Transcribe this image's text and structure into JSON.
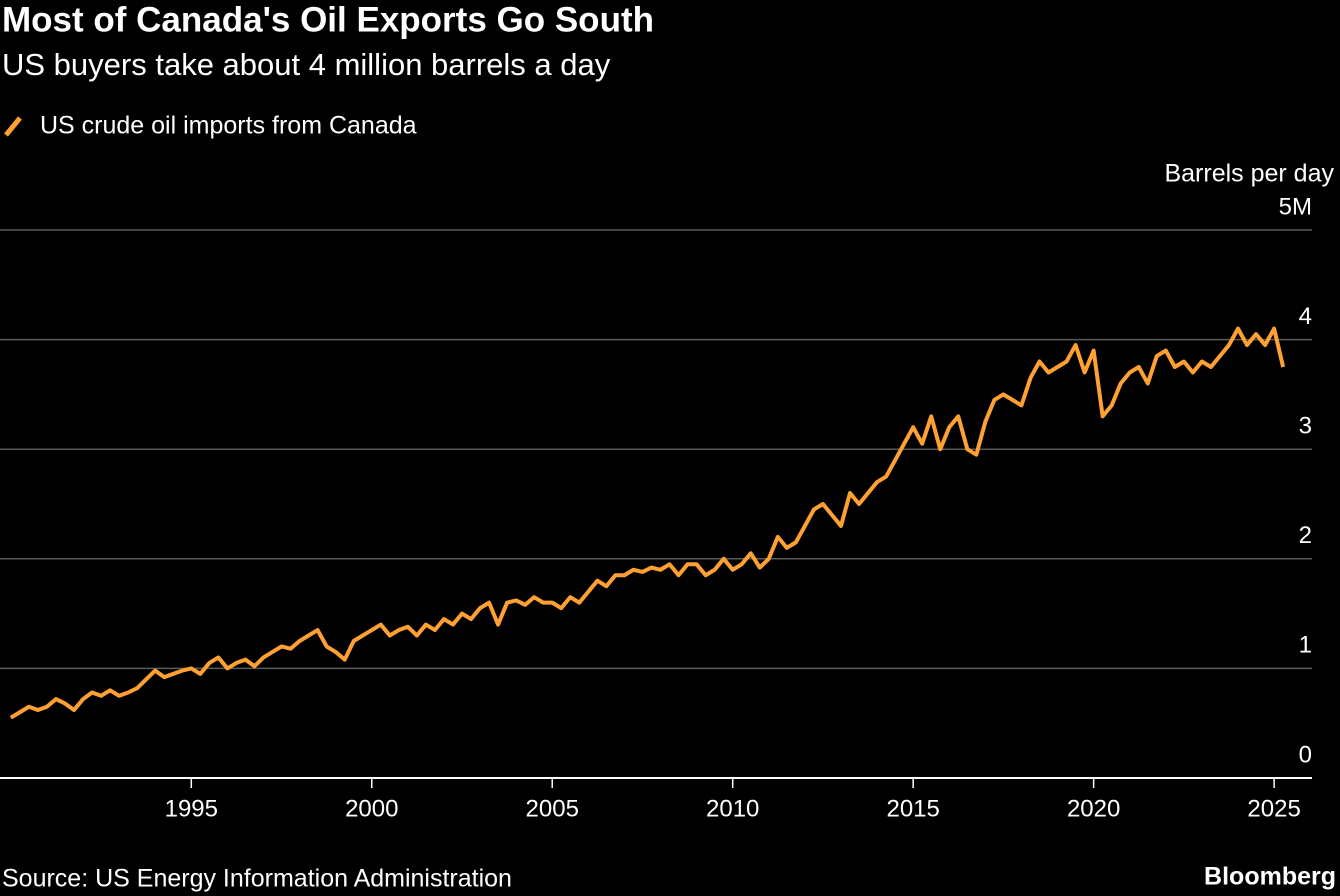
{
  "chart_data": {
    "type": "line",
    "title": "Most of Canada's Oil Exports Go South",
    "subtitle": "US buyers take about 4 million barrels a day",
    "y_axis_label": "Barrels per day",
    "source": "Source: US Energy Information Administration",
    "brand": "Bloomberg",
    "x": [
      1990,
      1990.25,
      1990.5,
      1990.75,
      1991,
      1991.25,
      1991.5,
      1991.75,
      1992,
      1992.25,
      1992.5,
      1992.75,
      1993,
      1993.25,
      1993.5,
      1993.75,
      1994,
      1994.25,
      1994.5,
      1994.75,
      1995,
      1995.25,
      1995.5,
      1995.75,
      1996,
      1996.25,
      1996.5,
      1996.75,
      1997,
      1997.25,
      1997.5,
      1997.75,
      1998,
      1998.25,
      1998.5,
      1998.75,
      1999,
      1999.25,
      1999.5,
      1999.75,
      2000,
      2000.25,
      2000.5,
      2000.75,
      2001,
      2001.25,
      2001.5,
      2001.75,
      2002,
      2002.25,
      2002.5,
      2002.75,
      2003,
      2003.25,
      2003.5,
      2003.75,
      2004,
      2004.25,
      2004.5,
      2004.75,
      2005,
      2005.25,
      2005.5,
      2005.75,
      2006,
      2006.25,
      2006.5,
      2006.75,
      2007,
      2007.25,
      2007.5,
      2007.75,
      2008,
      2008.25,
      2008.5,
      2008.75,
      2009,
      2009.25,
      2009.5,
      2009.75,
      2010,
      2010.25,
      2010.5,
      2010.75,
      2011,
      2011.25,
      2011.5,
      2011.75,
      2012,
      2012.25,
      2012.5,
      2012.75,
      2013,
      2013.25,
      2013.5,
      2013.75,
      2014,
      2014.25,
      2014.5,
      2014.75,
      2015,
      2015.25,
      2015.5,
      2015.75,
      2016,
      2016.25,
      2016.5,
      2016.75,
      2017,
      2017.25,
      2017.5,
      2017.75,
      2018,
      2018.25,
      2018.5,
      2018.75,
      2019,
      2019.25,
      2019.5,
      2019.75,
      2020,
      2020.25,
      2020.5,
      2020.75,
      2021,
      2021.25,
      2021.5,
      2021.75,
      2022,
      2022.25,
      2022.5,
      2022.75,
      2023,
      2023.25,
      2023.5,
      2023.75,
      2024,
      2024.25,
      2024.5,
      2024.75,
      2025,
      2025.25
    ],
    "series": [
      {
        "name": "US crude oil imports from Canada",
        "color": "#ffa033",
        "values": [
          0.55,
          0.6,
          0.65,
          0.62,
          0.65,
          0.72,
          0.68,
          0.62,
          0.72,
          0.78,
          0.75,
          0.8,
          0.75,
          0.78,
          0.82,
          0.9,
          0.98,
          0.92,
          0.95,
          0.98,
          1.0,
          0.95,
          1.05,
          1.1,
          1.0,
          1.05,
          1.08,
          1.02,
          1.1,
          1.15,
          1.2,
          1.18,
          1.25,
          1.3,
          1.35,
          1.2,
          1.15,
          1.08,
          1.25,
          1.3,
          1.35,
          1.4,
          1.3,
          1.35,
          1.38,
          1.3,
          1.4,
          1.35,
          1.45,
          1.4,
          1.5,
          1.45,
          1.55,
          1.6,
          1.4,
          1.6,
          1.62,
          1.58,
          1.65,
          1.6,
          1.6,
          1.55,
          1.65,
          1.6,
          1.7,
          1.8,
          1.75,
          1.85,
          1.85,
          1.9,
          1.88,
          1.92,
          1.9,
          1.95,
          1.85,
          1.95,
          1.95,
          1.85,
          1.9,
          2.0,
          1.9,
          1.95,
          2.05,
          1.92,
          2.0,
          2.2,
          2.1,
          2.15,
          2.3,
          2.45,
          2.5,
          2.4,
          2.3,
          2.6,
          2.5,
          2.6,
          2.7,
          2.75,
          2.9,
          3.05,
          3.2,
          3.05,
          3.3,
          3.0,
          3.2,
          3.3,
          3.0,
          2.95,
          3.25,
          3.45,
          3.5,
          3.45,
          3.4,
          3.65,
          3.8,
          3.7,
          3.75,
          3.8,
          3.95,
          3.7,
          3.9,
          3.3,
          3.4,
          3.6,
          3.7,
          3.75,
          3.6,
          3.85,
          3.9,
          3.75,
          3.8,
          3.7,
          3.8,
          3.75,
          3.85,
          3.95,
          4.1,
          3.95,
          4.05,
          3.95,
          4.1,
          3.75
        ]
      }
    ],
    "xlim": [
      1989.7,
      2026.05
    ],
    "xticks": [
      1995,
      2000,
      2005,
      2010,
      2015,
      2020,
      2025
    ],
    "ylim": [
      0,
      5
    ],
    "yticks": [
      0,
      1,
      2,
      3,
      4,
      {
        "value": 5,
        "label": "5M"
      }
    ],
    "grid": true
  }
}
